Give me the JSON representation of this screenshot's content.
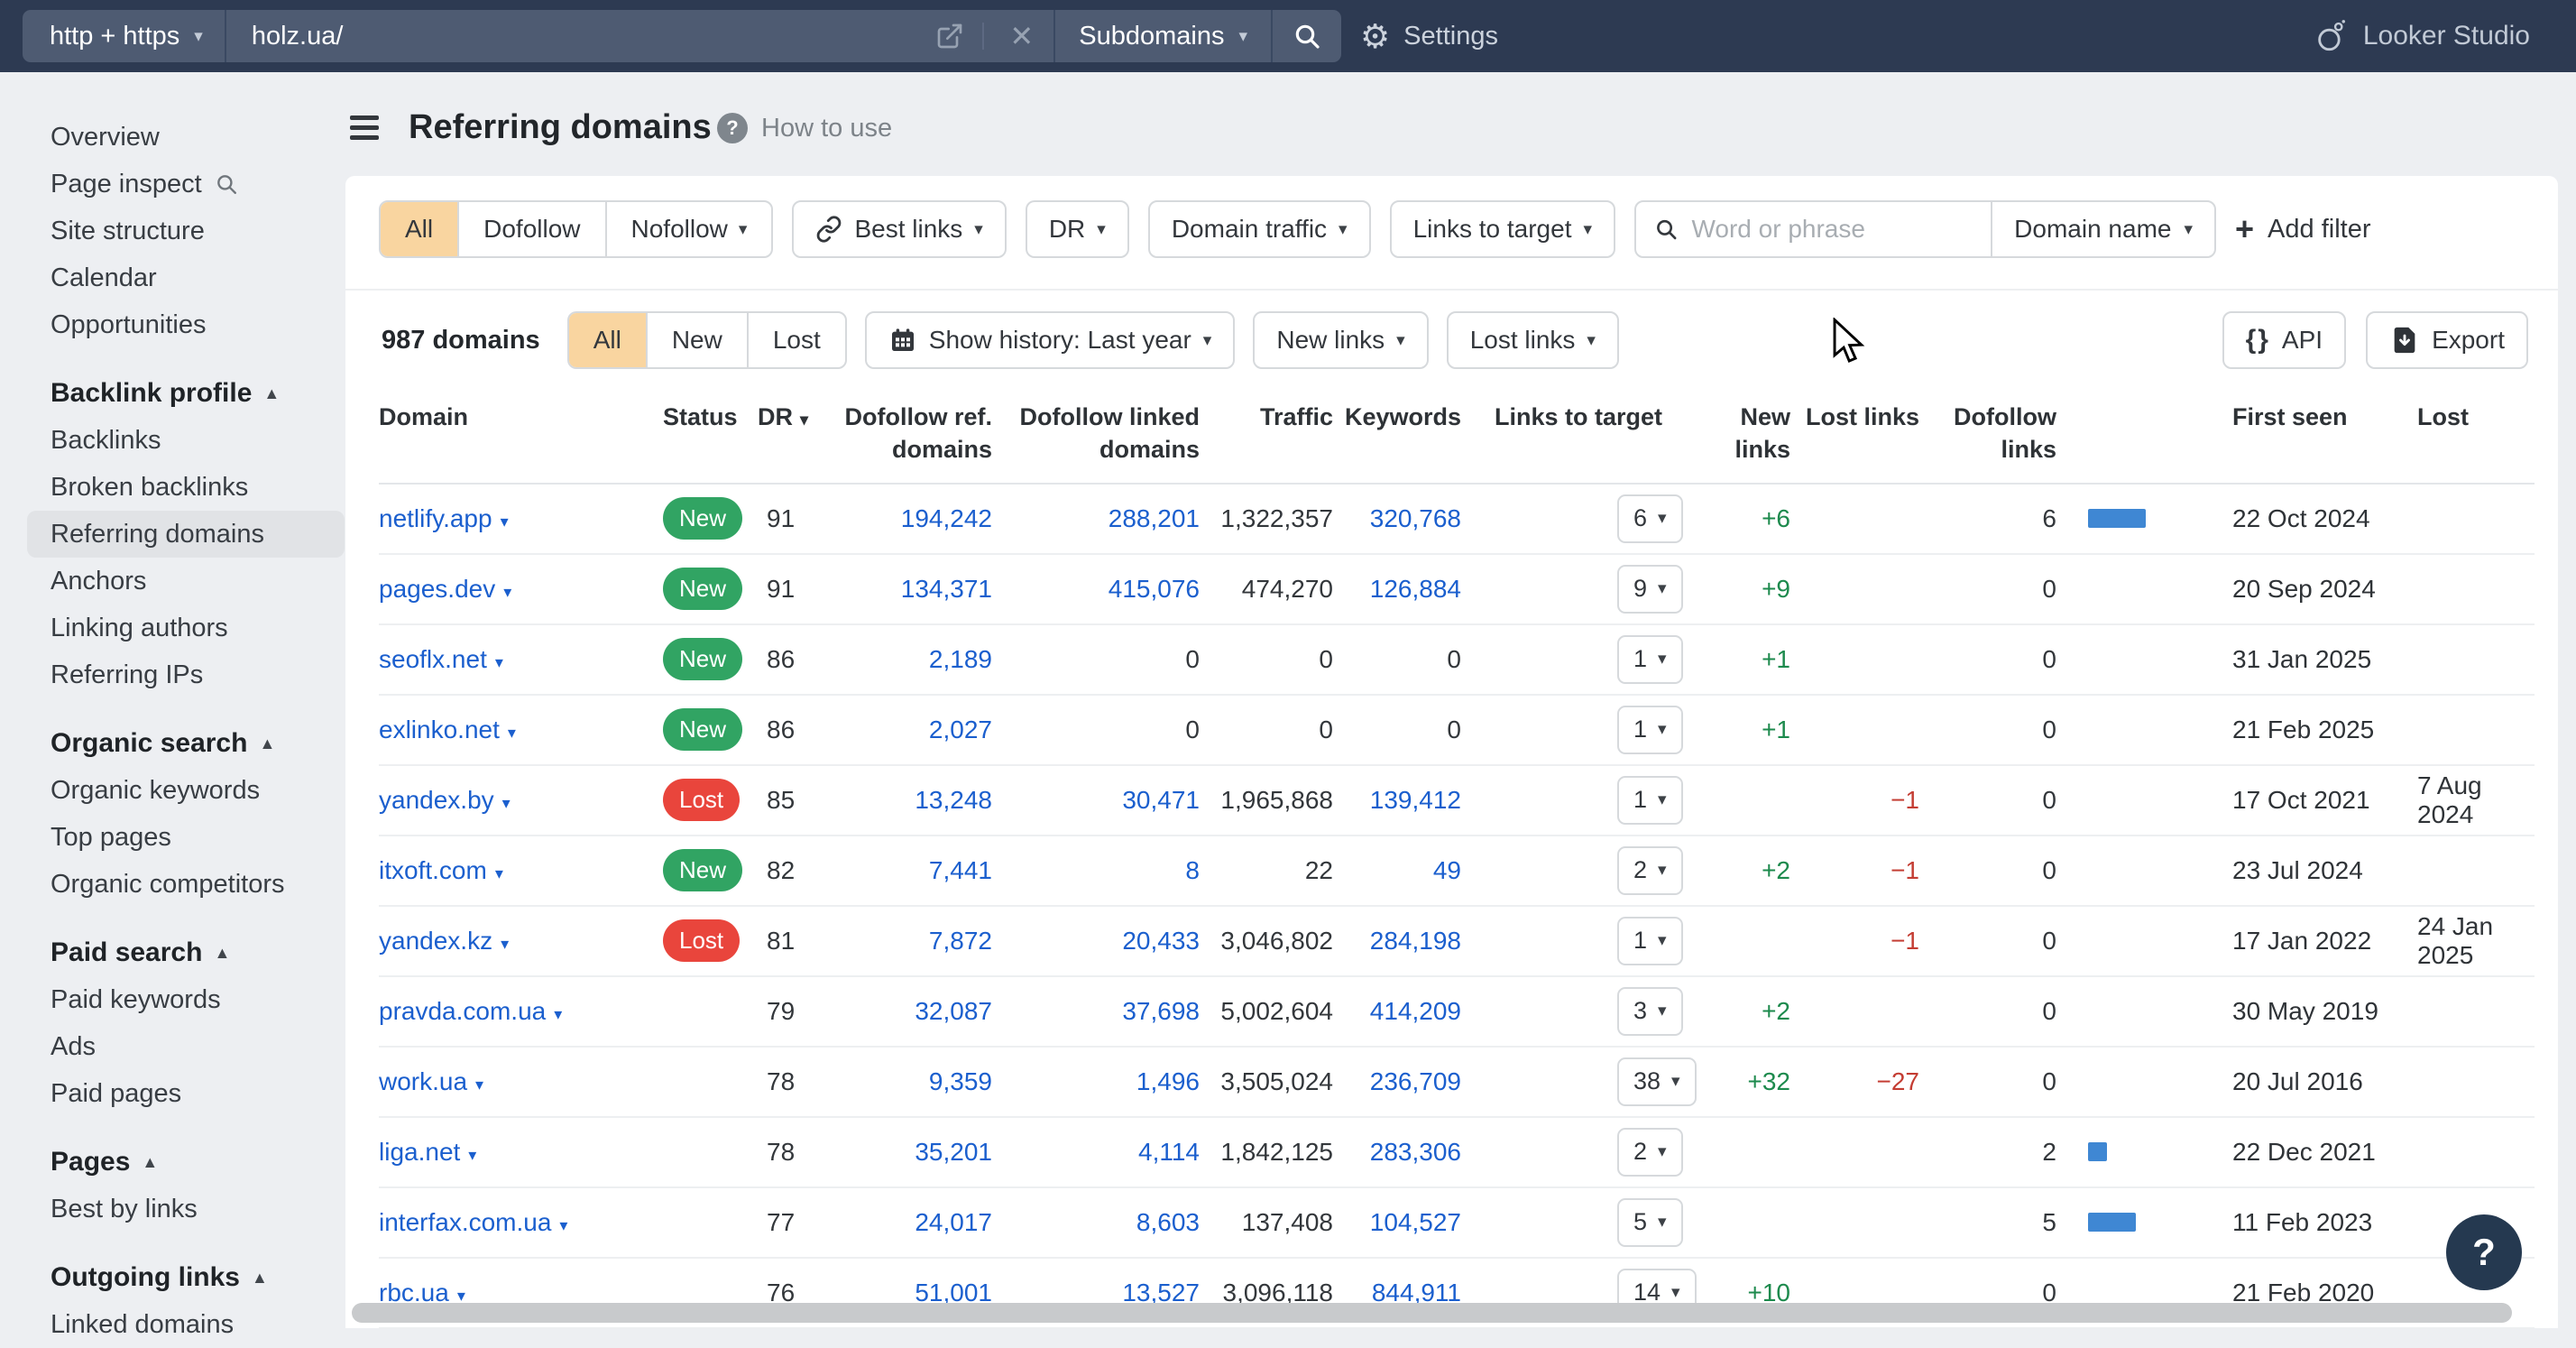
{
  "topbar": {
    "protocol_label": "http + https",
    "url_value": "holz.ua/",
    "scope_label": "Subdomains",
    "settings_label": "Settings",
    "looker_label": "Looker Studio"
  },
  "sidebar": {
    "top_items": [
      {
        "label": "Overview"
      },
      {
        "label": "Page inspect",
        "icon": "search"
      },
      {
        "label": "Site structure"
      },
      {
        "label": "Calendar"
      },
      {
        "label": "Opportunities"
      }
    ],
    "sections": [
      {
        "title": "Backlink profile",
        "items": [
          {
            "label": "Backlinks"
          },
          {
            "label": "Broken backlinks"
          },
          {
            "label": "Referring domains",
            "selected": true
          },
          {
            "label": "Anchors"
          },
          {
            "label": "Linking authors"
          },
          {
            "label": "Referring IPs"
          }
        ]
      },
      {
        "title": "Organic search",
        "items": [
          {
            "label": "Organic keywords"
          },
          {
            "label": "Top pages"
          },
          {
            "label": "Organic competitors"
          }
        ]
      },
      {
        "title": "Paid search",
        "items": [
          {
            "label": "Paid keywords"
          },
          {
            "label": "Ads"
          },
          {
            "label": "Paid pages"
          }
        ]
      },
      {
        "title": "Pages",
        "items": [
          {
            "label": "Best by links"
          }
        ]
      },
      {
        "title": "Outgoing links",
        "items": [
          {
            "label": "Linked domains"
          }
        ]
      }
    ]
  },
  "header": {
    "title": "Referring domains",
    "help_label": "How to use"
  },
  "filters": {
    "follow_segments": [
      "All",
      "Dofollow",
      "Nofollow"
    ],
    "follow_active": "All",
    "best_links_label": "Best links",
    "dr_label": "DR",
    "domain_traffic_label": "Domain traffic",
    "links_to_target_label": "Links to target",
    "search_placeholder": "Word or phrase",
    "search_scope_label": "Domain name",
    "add_filter_label": "Add filter"
  },
  "toolbar": {
    "count_label": "987 domains",
    "status_segments": [
      "All",
      "New",
      "Lost"
    ],
    "status_active": "All",
    "history_label": "Show history: Last year",
    "new_links_label": "New links",
    "lost_links_label": "Lost links",
    "api_label": "API",
    "export_label": "Export"
  },
  "table": {
    "columns": [
      [
        "Domain"
      ],
      [
        "Status"
      ],
      [
        "DR"
      ],
      [
        "Dofollow ref.",
        "domains"
      ],
      [
        "Dofollow linked",
        "domains"
      ],
      [
        "Traffic"
      ],
      [
        "Keywords"
      ],
      [
        "Links to target"
      ],
      [
        "New links"
      ],
      [
        "Lost links"
      ],
      [
        "Dofollow",
        "links"
      ],
      [
        ""
      ],
      [
        "First seen"
      ],
      [
        "Lost"
      ]
    ],
    "rows": [
      {
        "domain": "netlify.app",
        "status": "New",
        "dr": "91",
        "dofollow_ref": "194,242",
        "dofollow_linked": "288,201",
        "traffic": "1,322,357",
        "keywords": "320,768",
        "links_to_target": "6",
        "new_links": "+6",
        "lost_links": "",
        "dofollow_links": "6",
        "first_seen": "22 Oct 2024",
        "lost": ""
      },
      {
        "domain": "pages.dev",
        "status": "New",
        "dr": "91",
        "dofollow_ref": "134,371",
        "dofollow_linked": "415,076",
        "traffic": "474,270",
        "keywords": "126,884",
        "links_to_target": "9",
        "new_links": "+9",
        "lost_links": "",
        "dofollow_links": "0",
        "first_seen": "20 Sep 2024",
        "lost": ""
      },
      {
        "domain": "seoflx.net",
        "status": "New",
        "dr": "86",
        "dofollow_ref": "2,189",
        "dofollow_linked": "0",
        "traffic": "0",
        "keywords": "0",
        "links_to_target": "1",
        "new_links": "+1",
        "lost_links": "",
        "dofollow_links": "0",
        "first_seen": "31 Jan 2025",
        "lost": ""
      },
      {
        "domain": "exlinko.net",
        "status": "New",
        "dr": "86",
        "dofollow_ref": "2,027",
        "dofollow_linked": "0",
        "traffic": "0",
        "keywords": "0",
        "links_to_target": "1",
        "new_links": "+1",
        "lost_links": "",
        "dofollow_links": "0",
        "first_seen": "21 Feb 2025",
        "lost": ""
      },
      {
        "domain": "yandex.by",
        "status": "Lost",
        "dr": "85",
        "dofollow_ref": "13,248",
        "dofollow_linked": "30,471",
        "traffic": "1,965,868",
        "keywords": "139,412",
        "links_to_target": "1",
        "new_links": "",
        "lost_links": "−1",
        "dofollow_links": "0",
        "first_seen": "17 Oct 2021",
        "lost": "7 Aug 2024"
      },
      {
        "domain": "itxoft.com",
        "status": "New",
        "dr": "82",
        "dofollow_ref": "7,441",
        "dofollow_linked": "8",
        "traffic": "22",
        "keywords": "49",
        "links_to_target": "2",
        "new_links": "+2",
        "lost_links": "−1",
        "dofollow_links": "0",
        "first_seen": "23 Jul 2024",
        "lost": ""
      },
      {
        "domain": "yandex.kz",
        "status": "Lost",
        "dr": "81",
        "dofollow_ref": "7,872",
        "dofollow_linked": "20,433",
        "traffic": "3,046,802",
        "keywords": "284,198",
        "links_to_target": "1",
        "new_links": "",
        "lost_links": "−1",
        "dofollow_links": "0",
        "first_seen": "17 Jan 2022",
        "lost": "24 Jan 2025"
      },
      {
        "domain": "pravda.com.ua",
        "status": "",
        "dr": "79",
        "dofollow_ref": "32,087",
        "dofollow_linked": "37,698",
        "traffic": "5,002,604",
        "keywords": "414,209",
        "links_to_target": "3",
        "new_links": "+2",
        "lost_links": "",
        "dofollow_links": "0",
        "first_seen": "30 May 2019",
        "lost": ""
      },
      {
        "domain": "work.ua",
        "status": "",
        "dr": "78",
        "dofollow_ref": "9,359",
        "dofollow_linked": "1,496",
        "traffic": "3,505,024",
        "keywords": "236,709",
        "links_to_target": "38",
        "new_links": "+32",
        "lost_links": "−27",
        "dofollow_links": "0",
        "first_seen": "20 Jul 2016",
        "lost": ""
      },
      {
        "domain": "liga.net",
        "status": "",
        "dr": "78",
        "dofollow_ref": "35,201",
        "dofollow_linked": "4,114",
        "traffic": "1,842,125",
        "keywords": "283,306",
        "links_to_target": "2",
        "new_links": "",
        "lost_links": "",
        "dofollow_links": "2",
        "first_seen": "22 Dec 2021",
        "lost": ""
      },
      {
        "domain": "interfax.com.ua",
        "status": "",
        "dr": "77",
        "dofollow_ref": "24,017",
        "dofollow_linked": "8,603",
        "traffic": "137,408",
        "keywords": "104,527",
        "links_to_target": "5",
        "new_links": "",
        "lost_links": "",
        "dofollow_links": "5",
        "first_seen": "11 Feb 2023",
        "lost": ""
      },
      {
        "domain": "rbc.ua",
        "status": "",
        "dr": "76",
        "dofollow_ref": "51,001",
        "dofollow_linked": "13,527",
        "traffic": "3,096,118",
        "keywords": "844,911",
        "links_to_target": "14",
        "new_links": "+10",
        "lost_links": "",
        "dofollow_links": "0",
        "first_seen": "21 Feb 2020",
        "lost": ""
      }
    ]
  },
  "colors": {
    "topbar_bg": "#2d3a52",
    "accent_orange": "#f9d5a0",
    "badge_new": "#31a463",
    "badge_lost": "#e9453c",
    "link_blue": "#1b5fce",
    "positive_green": "#1d8a4d",
    "negative_red": "#c43d33",
    "bar_blue": "#3f87d3"
  }
}
